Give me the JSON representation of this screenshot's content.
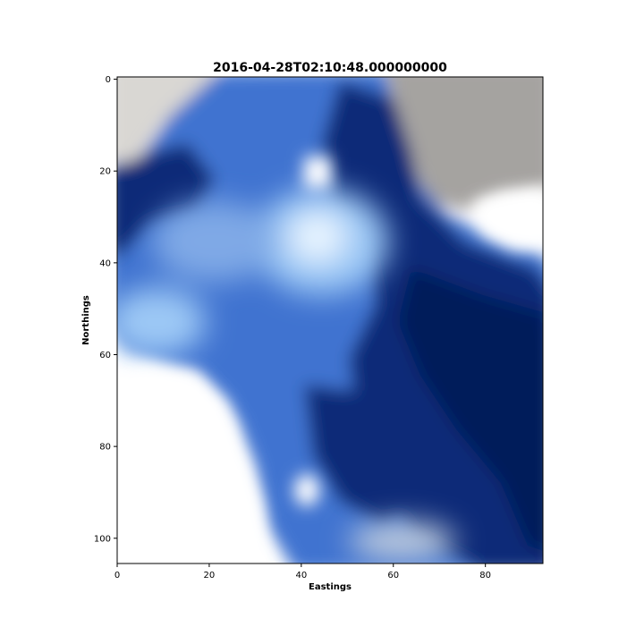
{
  "chart_data": {
    "type": "heatmap",
    "title": "2016-04-28T02:10:48.000000000",
    "xlabel": "Eastings",
    "ylabel": "Northings",
    "xlim": [
      0,
      92.5
    ],
    "ylim": [
      105.5,
      -0.5
    ],
    "y_inverted": true,
    "grid": false,
    "legend": "none",
    "x_ticks": [
      0,
      20,
      40,
      60,
      80
    ],
    "y_ticks": [
      0,
      20,
      40,
      60,
      80,
      100
    ],
    "image_shape": [
      106,
      93
    ],
    "colors": {
      "cloud_white": "#ffffff",
      "cloud_grey": "#a5a3a0",
      "haze_light_blue": "#9cc8f5",
      "water_mid_blue": "#3f73d0",
      "water_deep_blue": "#0b2a78",
      "water_darkest": "#021a5a"
    }
  }
}
